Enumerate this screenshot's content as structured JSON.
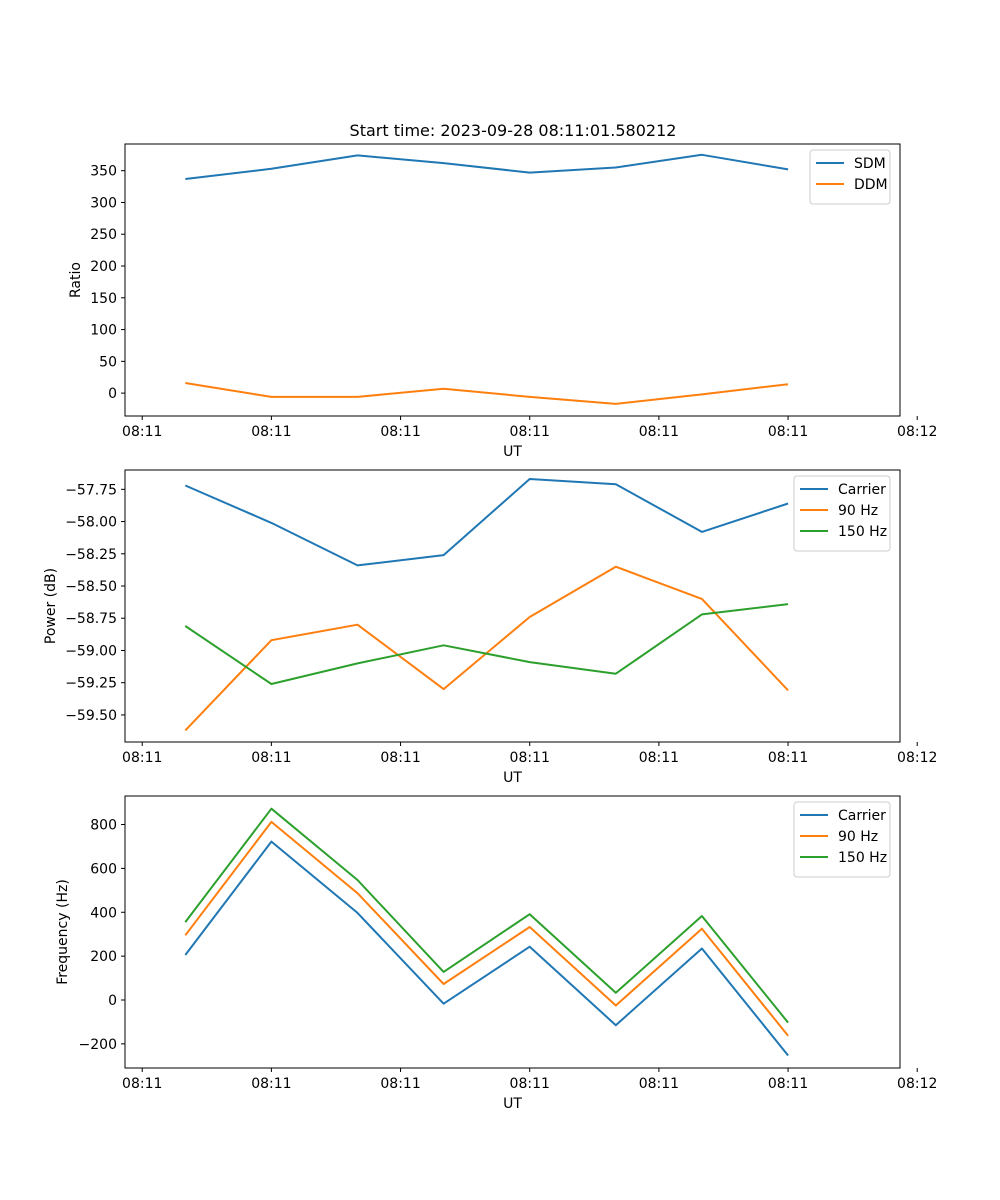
{
  "figure_title": "Start time: 2023-09-28 08:11:01.580212",
  "chart_data": [
    {
      "type": "line",
      "title": "Start time: 2023-09-28 08:11:01.580212",
      "xlabel": "UT",
      "ylabel": "Ratio",
      "x": [
        1,
        2,
        3,
        4,
        5,
        6,
        7,
        8
      ],
      "xlim": [
        0.3,
        9.3
      ],
      "xticks": [
        0.5,
        2,
        3.5,
        5,
        6.5,
        8,
        9.5
      ],
      "xtick_labels": [
        "08:11",
        "08:11",
        "08:11",
        "08:11",
        "08:11",
        "08:11",
        "08:12"
      ],
      "ylim": [
        -36,
        392
      ],
      "yticks": [
        0,
        50,
        100,
        150,
        200,
        250,
        300,
        350
      ],
      "legend_position": "upper-right",
      "series": [
        {
          "name": "SDM",
          "color": "#1f77b4",
          "values": [
            337,
            353,
            374,
            362,
            347,
            355,
            375,
            352
          ]
        },
        {
          "name": "DDM",
          "color": "#ff7f0e",
          "values": [
            16,
            -6,
            -6,
            7,
            -6,
            -17,
            -2,
            14
          ]
        }
      ]
    },
    {
      "type": "line",
      "title": "",
      "xlabel": "UT",
      "ylabel": "Power (dB)",
      "x": [
        1,
        2,
        3,
        4,
        5,
        6,
        7,
        8
      ],
      "xlim": [
        0.3,
        9.3
      ],
      "xticks": [
        0.5,
        2,
        3.5,
        5,
        6.5,
        8,
        9.5
      ],
      "xtick_labels": [
        "08:11",
        "08:11",
        "08:11",
        "08:11",
        "08:11",
        "08:11",
        "08:12"
      ],
      "ylim": [
        -59.71,
        -57.6
      ],
      "yticks": [
        -59.5,
        -59.25,
        -59.0,
        -58.75,
        -58.5,
        -58.25,
        -58.0,
        -57.75
      ],
      "ytick_labels": [
        "−59.50",
        "−59.25",
        "−59.00",
        "−58.75",
        "−58.50",
        "−58.25",
        "−58.00",
        "−57.75"
      ],
      "legend_position": "upper-right",
      "series": [
        {
          "name": "Carrier",
          "color": "#1f77b4",
          "values": [
            -57.72,
            -58.01,
            -58.34,
            -58.26,
            -57.67,
            -57.71,
            -58.08,
            -57.86
          ]
        },
        {
          "name": "90 Hz",
          "color": "#ff7f0e",
          "values": [
            -59.62,
            -58.92,
            -58.8,
            -59.3,
            -58.74,
            -58.35,
            -58.6,
            -59.31
          ]
        },
        {
          "name": "150 Hz",
          "color": "#2ca02c",
          "values": [
            -58.81,
            -59.26,
            -59.1,
            -58.96,
            -59.09,
            -59.18,
            -58.72,
            -58.64
          ]
        }
      ]
    },
    {
      "type": "line",
      "title": "",
      "xlabel": "UT",
      "ylabel": "Frequency (Hz)",
      "x": [
        1,
        2,
        3,
        4,
        5,
        6,
        7,
        8
      ],
      "xlim": [
        0.3,
        9.3
      ],
      "xticks": [
        0.5,
        2,
        3.5,
        5,
        6.5,
        8,
        9.5
      ],
      "xtick_labels": [
        "08:11",
        "08:11",
        "08:11",
        "08:11",
        "08:11",
        "08:11",
        "08:12"
      ],
      "ylim": [
        -310,
        930
      ],
      "yticks": [
        -200,
        0,
        200,
        400,
        600,
        800
      ],
      "ytick_labels": [
        "−200",
        "0",
        "200",
        "400",
        "600",
        "800"
      ],
      "legend_position": "upper-right",
      "series": [
        {
          "name": "Carrier",
          "color": "#1f77b4",
          "values": [
            205,
            722,
            397,
            -17,
            243,
            -115,
            235,
            -253
          ]
        },
        {
          "name": "90 Hz",
          "color": "#ff7f0e",
          "values": [
            295,
            812,
            487,
            73,
            333,
            -25,
            325,
            -163
          ]
        },
        {
          "name": "150 Hz",
          "color": "#2ca02c",
          "values": [
            355,
            872,
            547,
            128,
            391,
            33,
            383,
            -103
          ]
        }
      ]
    }
  ]
}
